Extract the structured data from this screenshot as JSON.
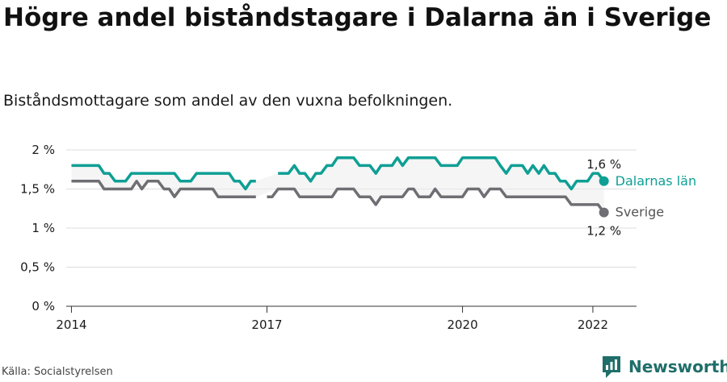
{
  "title": "Högre andel biståndstagare i Dalarna än i Sverige",
  "subtitle": "Biståndsmottagare som andel av den vuxna befolkningen.",
  "source": "Källa: Socialstyrelsen",
  "brand": "Newsworthy",
  "colors": {
    "dalarna": "#0f9f94",
    "sverige": "#6f6e73",
    "band": "#ececec",
    "grid": "#dcdcdc",
    "brand": "#1f6e6a"
  },
  "chart_data": {
    "type": "line",
    "ylim": [
      0,
      2
    ],
    "yticks": [
      0,
      0.5,
      1,
      1.5,
      2
    ],
    "ytick_labels": [
      "0 %",
      "0,5 %",
      "1 %",
      "1,5 %",
      "2 %"
    ],
    "xticks": [
      2014,
      2017,
      2020,
      2022
    ],
    "xtick_labels": [
      "2014",
      "2017",
      "2020",
      "2022"
    ],
    "grid": true,
    "series": [
      {
        "name": "Dalarnas län",
        "end_label": "1,6 %",
        "points": [
          [
            2014.0,
            1.8
          ],
          [
            2014.08,
            1.8
          ],
          [
            2014.17,
            1.8
          ],
          [
            2014.25,
            1.8
          ],
          [
            2014.33,
            1.8
          ],
          [
            2014.42,
            1.8
          ],
          [
            2014.5,
            1.7
          ],
          [
            2014.58,
            1.7
          ],
          [
            2014.67,
            1.6
          ],
          [
            2014.75,
            1.6
          ],
          [
            2014.83,
            1.6
          ],
          [
            2014.92,
            1.7
          ],
          [
            2015.0,
            1.7
          ],
          [
            2015.08,
            1.7
          ],
          [
            2015.17,
            1.7
          ],
          [
            2015.25,
            1.7
          ],
          [
            2015.33,
            1.7
          ],
          [
            2015.42,
            1.7
          ],
          [
            2015.5,
            1.7
          ],
          [
            2015.58,
            1.7
          ],
          [
            2015.67,
            1.6
          ],
          [
            2015.75,
            1.6
          ],
          [
            2015.83,
            1.6
          ],
          [
            2015.92,
            1.7
          ],
          [
            2016.0,
            1.7
          ],
          [
            2016.08,
            1.7
          ],
          [
            2016.17,
            1.7
          ],
          [
            2016.25,
            1.7
          ],
          [
            2016.33,
            1.7
          ],
          [
            2016.42,
            1.7
          ],
          [
            2016.5,
            1.6
          ],
          [
            2016.58,
            1.6
          ],
          [
            2016.67,
            1.5
          ],
          [
            2016.75,
            1.6
          ],
          [
            2016.83,
            1.6
          ],
          null,
          [
            2017.17,
            1.7
          ],
          [
            2017.25,
            1.7
          ],
          [
            2017.33,
            1.7
          ],
          [
            2017.42,
            1.8
          ],
          [
            2017.5,
            1.7
          ],
          [
            2017.58,
            1.7
          ],
          [
            2017.67,
            1.6
          ],
          [
            2017.75,
            1.7
          ],
          [
            2017.83,
            1.7
          ],
          [
            2017.92,
            1.8
          ],
          [
            2018.0,
            1.8
          ],
          [
            2018.08,
            1.9
          ],
          [
            2018.17,
            1.9
          ],
          [
            2018.25,
            1.9
          ],
          [
            2018.33,
            1.9
          ],
          [
            2018.42,
            1.8
          ],
          [
            2018.5,
            1.8
          ],
          [
            2018.58,
            1.8
          ],
          [
            2018.67,
            1.7
          ],
          [
            2018.75,
            1.8
          ],
          [
            2018.83,
            1.8
          ],
          [
            2018.92,
            1.8
          ],
          [
            2019.0,
            1.9
          ],
          [
            2019.08,
            1.8
          ],
          [
            2019.17,
            1.9
          ],
          [
            2019.25,
            1.9
          ],
          [
            2019.33,
            1.9
          ],
          [
            2019.42,
            1.9
          ],
          [
            2019.5,
            1.9
          ],
          [
            2019.58,
            1.9
          ],
          [
            2019.67,
            1.8
          ],
          [
            2019.75,
            1.8
          ],
          [
            2019.83,
            1.8
          ],
          [
            2019.92,
            1.8
          ],
          [
            2020.0,
            1.9
          ],
          [
            2020.08,
            1.9
          ],
          [
            2020.17,
            1.9
          ],
          [
            2020.25,
            1.9
          ],
          [
            2020.33,
            1.9
          ],
          [
            2020.42,
            1.9
          ],
          [
            2020.5,
            1.9
          ],
          [
            2020.58,
            1.8
          ],
          [
            2020.67,
            1.7
          ],
          [
            2020.75,
            1.8
          ],
          [
            2020.83,
            1.8
          ],
          [
            2020.92,
            1.8
          ],
          [
            2021.0,
            1.7
          ],
          [
            2021.08,
            1.8
          ],
          [
            2021.17,
            1.7
          ],
          [
            2021.25,
            1.8
          ],
          [
            2021.33,
            1.7
          ],
          [
            2021.42,
            1.7
          ],
          [
            2021.5,
            1.6
          ],
          [
            2021.58,
            1.6
          ],
          [
            2021.67,
            1.5
          ],
          [
            2021.75,
            1.6
          ],
          [
            2021.83,
            1.6
          ],
          [
            2021.92,
            1.6
          ],
          [
            2022.0,
            1.7
          ],
          [
            2022.08,
            1.7
          ],
          [
            2022.17,
            1.6
          ]
        ]
      },
      {
        "name": "Sverige",
        "end_label": "1,2 %",
        "points": [
          [
            2014.0,
            1.6
          ],
          [
            2014.08,
            1.6
          ],
          [
            2014.17,
            1.6
          ],
          [
            2014.25,
            1.6
          ],
          [
            2014.33,
            1.6
          ],
          [
            2014.42,
            1.6
          ],
          [
            2014.5,
            1.5
          ],
          [
            2014.58,
            1.5
          ],
          [
            2014.67,
            1.5
          ],
          [
            2014.75,
            1.5
          ],
          [
            2014.83,
            1.5
          ],
          [
            2014.92,
            1.5
          ],
          [
            2015.0,
            1.6
          ],
          [
            2015.08,
            1.5
          ],
          [
            2015.17,
            1.6
          ],
          [
            2015.25,
            1.6
          ],
          [
            2015.33,
            1.6
          ],
          [
            2015.42,
            1.5
          ],
          [
            2015.5,
            1.5
          ],
          [
            2015.58,
            1.4
          ],
          [
            2015.67,
            1.5
          ],
          [
            2015.75,
            1.5
          ],
          [
            2015.83,
            1.5
          ],
          [
            2015.92,
            1.5
          ],
          [
            2016.0,
            1.5
          ],
          [
            2016.08,
            1.5
          ],
          [
            2016.17,
            1.5
          ],
          [
            2016.25,
            1.4
          ],
          [
            2016.33,
            1.4
          ],
          [
            2016.42,
            1.4
          ],
          [
            2016.5,
            1.4
          ],
          [
            2016.58,
            1.4
          ],
          [
            2016.67,
            1.4
          ],
          [
            2016.75,
            1.4
          ],
          [
            2016.83,
            1.4
          ],
          null,
          [
            2017.0,
            1.4
          ],
          [
            2017.08,
            1.4
          ],
          [
            2017.17,
            1.5
          ],
          [
            2017.25,
            1.5
          ],
          [
            2017.33,
            1.5
          ],
          [
            2017.42,
            1.5
          ],
          [
            2017.5,
            1.4
          ],
          [
            2017.58,
            1.4
          ],
          [
            2017.67,
            1.4
          ],
          [
            2017.75,
            1.4
          ],
          [
            2017.83,
            1.4
          ],
          [
            2017.92,
            1.4
          ],
          [
            2018.0,
            1.4
          ],
          [
            2018.08,
            1.5
          ],
          [
            2018.17,
            1.5
          ],
          [
            2018.25,
            1.5
          ],
          [
            2018.33,
            1.5
          ],
          [
            2018.42,
            1.4
          ],
          [
            2018.5,
            1.4
          ],
          [
            2018.58,
            1.4
          ],
          [
            2018.67,
            1.3
          ],
          [
            2018.75,
            1.4
          ],
          [
            2018.83,
            1.4
          ],
          [
            2018.92,
            1.4
          ],
          [
            2019.0,
            1.4
          ],
          [
            2019.08,
            1.4
          ],
          [
            2019.17,
            1.5
          ],
          [
            2019.25,
            1.5
          ],
          [
            2019.33,
            1.4
          ],
          [
            2019.42,
            1.4
          ],
          [
            2019.5,
            1.4
          ],
          [
            2019.58,
            1.5
          ],
          [
            2019.67,
            1.4
          ],
          [
            2019.75,
            1.4
          ],
          [
            2019.83,
            1.4
          ],
          [
            2019.92,
            1.4
          ],
          [
            2020.0,
            1.4
          ],
          [
            2020.08,
            1.5
          ],
          [
            2020.17,
            1.5
          ],
          [
            2020.25,
            1.5
          ],
          [
            2020.33,
            1.4
          ],
          [
            2020.42,
            1.5
          ],
          [
            2020.5,
            1.5
          ],
          [
            2020.58,
            1.5
          ],
          [
            2020.67,
            1.4
          ],
          [
            2020.75,
            1.4
          ],
          [
            2020.83,
            1.4
          ],
          [
            2020.92,
            1.4
          ],
          [
            2021.0,
            1.4
          ],
          [
            2021.08,
            1.4
          ],
          [
            2021.17,
            1.4
          ],
          [
            2021.25,
            1.4
          ],
          [
            2021.33,
            1.4
          ],
          [
            2021.42,
            1.4
          ],
          [
            2021.5,
            1.4
          ],
          [
            2021.58,
            1.4
          ],
          [
            2021.67,
            1.3
          ],
          [
            2021.75,
            1.3
          ],
          [
            2021.83,
            1.3
          ],
          [
            2021.92,
            1.3
          ],
          [
            2022.0,
            1.3
          ],
          [
            2022.08,
            1.3
          ],
          [
            2022.17,
            1.2
          ]
        ]
      }
    ]
  }
}
